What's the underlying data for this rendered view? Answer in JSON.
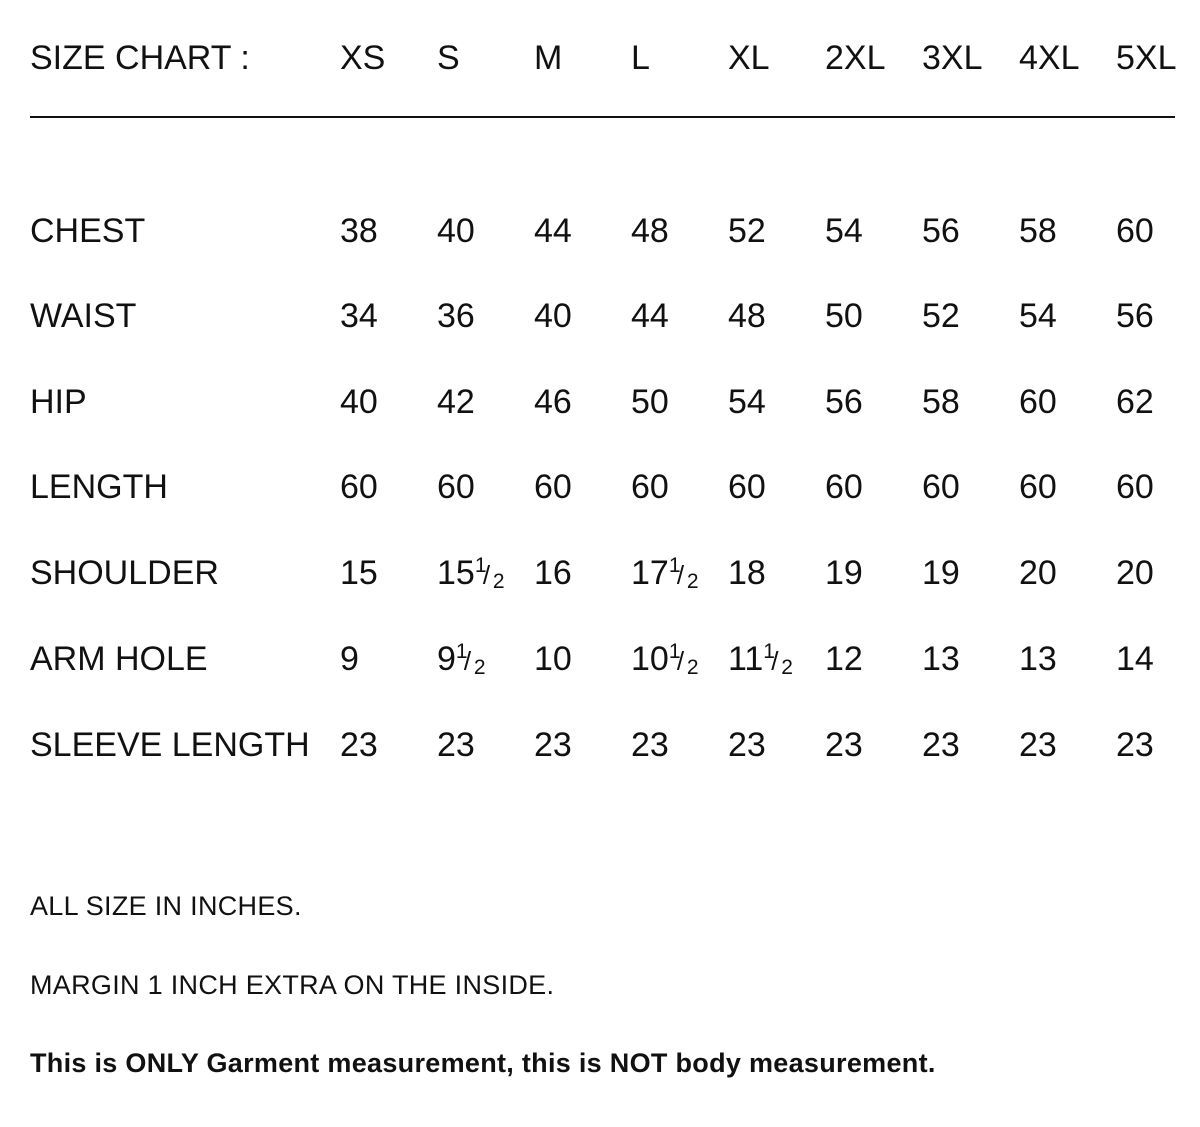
{
  "header": {
    "title": "SIZE CHART :",
    "sizes": [
      "XS",
      "S",
      "M",
      "L",
      "XL",
      "2XL",
      "3XL",
      "4XL",
      "5XL"
    ]
  },
  "rows": [
    {
      "label": "CHEST",
      "values": [
        {
          "w": "38"
        },
        {
          "w": "40"
        },
        {
          "w": "44"
        },
        {
          "w": "48"
        },
        {
          "w": "52"
        },
        {
          "w": "54"
        },
        {
          "w": "56"
        },
        {
          "w": "58"
        },
        {
          "w": "60"
        }
      ]
    },
    {
      "label": "WAIST",
      "values": [
        {
          "w": "34"
        },
        {
          "w": "36"
        },
        {
          "w": "40"
        },
        {
          "w": "44"
        },
        {
          "w": "48"
        },
        {
          "w": "50"
        },
        {
          "w": "52"
        },
        {
          "w": "54"
        },
        {
          "w": "56"
        }
      ]
    },
    {
      "label": "HIP",
      "values": [
        {
          "w": "40"
        },
        {
          "w": "42"
        },
        {
          "w": "46"
        },
        {
          "w": "50"
        },
        {
          "w": "54"
        },
        {
          "w": "56"
        },
        {
          "w": "58"
        },
        {
          "w": "60"
        },
        {
          "w": "62"
        }
      ]
    },
    {
      "label": "LENGTH",
      "values": [
        {
          "w": "60"
        },
        {
          "w": "60"
        },
        {
          "w": "60"
        },
        {
          "w": "60"
        },
        {
          "w": "60"
        },
        {
          "w": "60"
        },
        {
          "w": "60"
        },
        {
          "w": "60"
        },
        {
          "w": "60"
        }
      ]
    },
    {
      "label": "SHOULDER",
      "values": [
        {
          "w": "15"
        },
        {
          "w": "15",
          "n": "1",
          "d": "2"
        },
        {
          "w": "16"
        },
        {
          "w": "17",
          "n": "1",
          "d": "2"
        },
        {
          "w": "18"
        },
        {
          "w": "19"
        },
        {
          "w": "19"
        },
        {
          "w": "20"
        },
        {
          "w": "20"
        }
      ]
    },
    {
      "label": "ARM HOLE",
      "values": [
        {
          "w": "9"
        },
        {
          "w": "9",
          "n": "1",
          "d": "2"
        },
        {
          "w": "10"
        },
        {
          "w": "10",
          "n": "1",
          "d": "2"
        },
        {
          "w": "11",
          "n": "1",
          "d": "2"
        },
        {
          "w": "12"
        },
        {
          "w": "13"
        },
        {
          "w": "13"
        },
        {
          "w": "14"
        }
      ]
    },
    {
      "label": "SLEEVE LENGTH",
      "values": [
        {
          "w": "23"
        },
        {
          "w": "23"
        },
        {
          "w": "23"
        },
        {
          "w": "23"
        },
        {
          "w": "23"
        },
        {
          "w": "23"
        },
        {
          "w": "23"
        },
        {
          "w": "23"
        },
        {
          "w": "23"
        }
      ]
    }
  ],
  "notes": {
    "units": "ALL SIZE IN INCHES.",
    "margin": "MARGIN 1 INCH EXTRA ON THE INSIDE.",
    "disclaimer": "This is ONLY Garment measurement, this is NOT body measurement."
  }
}
